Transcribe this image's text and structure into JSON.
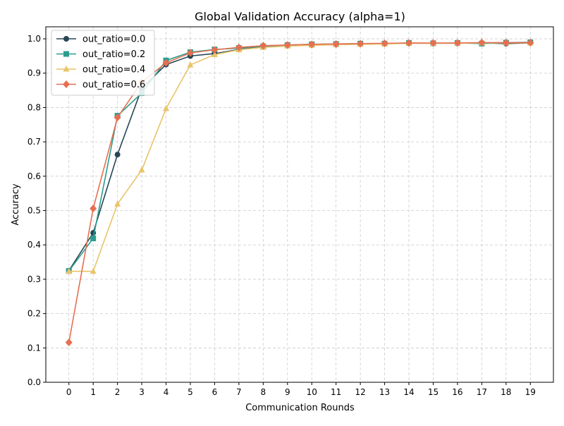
{
  "chart_data": {
    "type": "line",
    "title": "Global Validation Accuracy (alpha=1)",
    "xlabel": "Communication Rounds",
    "ylabel": "Accuracy",
    "x": [
      0,
      1,
      2,
      3,
      4,
      5,
      6,
      7,
      8,
      9,
      10,
      11,
      12,
      13,
      14,
      15,
      16,
      17,
      18,
      19
    ],
    "xlim": [
      -0.95,
      19.95
    ],
    "ylim": [
      0.0,
      1.035
    ],
    "yticks": [
      0.0,
      0.1,
      0.2,
      0.3,
      0.4,
      0.5,
      0.6,
      0.7,
      0.8,
      0.9,
      1.0
    ],
    "ytick_labels": [
      "0.0",
      "0.1",
      "0.2",
      "0.3",
      "0.4",
      "0.5",
      "0.6",
      "0.7",
      "0.8",
      "0.9",
      "1.0"
    ],
    "xtick_labels": [
      "0",
      "1",
      "2",
      "3",
      "4",
      "5",
      "6",
      "7",
      "8",
      "9",
      "10",
      "11",
      "12",
      "13",
      "14",
      "15",
      "16",
      "17",
      "18",
      "19"
    ],
    "grid": true,
    "legend_position": "top-left",
    "series": [
      {
        "name": "out_ratio=0.0",
        "color": "#264653",
        "marker": "circle",
        "values": [
          0.325,
          0.435,
          0.663,
          0.856,
          0.925,
          0.95,
          0.957,
          0.969,
          0.976,
          0.98,
          0.982,
          0.983,
          0.985,
          0.986,
          0.987,
          0.987,
          0.987,
          0.988,
          0.986,
          0.988
        ]
      },
      {
        "name": "out_ratio=0.2",
        "color": "#2a9d8f",
        "marker": "square",
        "values": [
          0.324,
          0.419,
          0.776,
          0.842,
          0.937,
          0.961,
          0.969,
          0.973,
          0.978,
          0.982,
          0.984,
          0.985,
          0.986,
          0.986,
          0.988,
          0.987,
          0.988,
          0.986,
          0.989,
          0.99
        ]
      },
      {
        "name": "out_ratio=0.4",
        "color": "#e9c46a",
        "marker": "triangle",
        "values": [
          0.323,
          0.323,
          0.519,
          0.618,
          0.797,
          0.924,
          0.954,
          0.968,
          0.975,
          0.979,
          0.981,
          0.983,
          0.984,
          0.985,
          0.987,
          0.987,
          0.987,
          0.988,
          0.988,
          0.988
        ]
      },
      {
        "name": "out_ratio=0.6",
        "color": "#e76f51",
        "marker": "diamond",
        "values": [
          0.116,
          0.506,
          0.771,
          0.874,
          0.93,
          0.959,
          0.968,
          0.975,
          0.98,
          0.982,
          0.984,
          0.985,
          0.986,
          0.987,
          0.988,
          0.988,
          0.988,
          0.989,
          0.989,
          0.989
        ]
      }
    ]
  }
}
